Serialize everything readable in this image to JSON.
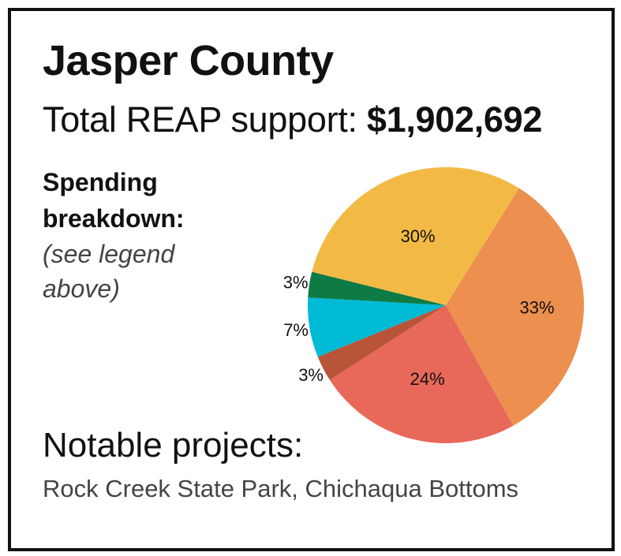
{
  "header": {
    "county": "Jasper County",
    "support_label": "Total REAP support: ",
    "support_amount": "$1,902,692"
  },
  "breakdown": {
    "heading": "Spending breakdown:",
    "note": "(see legend above)"
  },
  "chart_data": {
    "type": "pie",
    "start_angle_deg": -58,
    "direction": "clockwise",
    "values": [
      33,
      24,
      3,
      7,
      3,
      30
    ],
    "labels": [
      "33%",
      "24%",
      "3%",
      "7%",
      "3%",
      "30%"
    ],
    "colors": [
      "#EC8F4F",
      "#E8685A",
      "#B85538",
      "#00BBD6",
      "#0E7B44",
      "#F2BA45"
    ],
    "legend": "none"
  },
  "projects": {
    "heading": "Notable projects:",
    "list": "Rock Creek State Park, Chichaqua Bottoms"
  }
}
